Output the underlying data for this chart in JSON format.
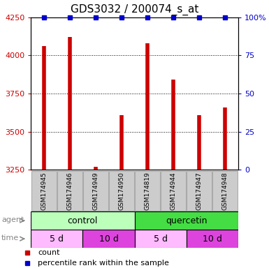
{
  "title": "GDS3032 / 200074_s_at",
  "samples": [
    "GSM174945",
    "GSM174946",
    "GSM174949",
    "GSM174950",
    "GSM174819",
    "GSM174944",
    "GSM174947",
    "GSM174948"
  ],
  "bar_values": [
    4060,
    4120,
    3270,
    3610,
    4080,
    3840,
    3610,
    3660
  ],
  "percentile_values": [
    100,
    100,
    100,
    100,
    100,
    100,
    100,
    100
  ],
  "bar_color": "#cc0000",
  "percentile_color": "#0000cc",
  "ylim_left": [
    3250,
    4250
  ],
  "yticks_left": [
    3250,
    3500,
    3750,
    4000,
    4250
  ],
  "ylim_right": [
    0,
    100
  ],
  "yticks_right": [
    0,
    25,
    50,
    75,
    100
  ],
  "yticklabels_right": [
    "0",
    "25",
    "50",
    "75",
    "100%"
  ],
  "agent_groups": [
    {
      "label": "control",
      "start": 0,
      "end": 4,
      "color": "#bbffbb"
    },
    {
      "label": "quercetin",
      "start": 4,
      "end": 8,
      "color": "#44dd44"
    }
  ],
  "time_groups": [
    {
      "label": "5 d",
      "start": 0,
      "end": 2,
      "color": "#ffbbff"
    },
    {
      "label": "10 d",
      "start": 2,
      "end": 4,
      "color": "#dd44dd"
    },
    {
      "label": "5 d",
      "start": 4,
      "end": 6,
      "color": "#ffbbff"
    },
    {
      "label": "10 d",
      "start": 6,
      "end": 8,
      "color": "#dd44dd"
    }
  ],
  "legend_count_color": "#cc0000",
  "legend_percentile_color": "#0000cc",
  "background_color": "#ffffff",
  "bar_bottom": 3250,
  "sample_bg_color": "#cccccc",
  "sample_border_color": "#aaaaaa"
}
